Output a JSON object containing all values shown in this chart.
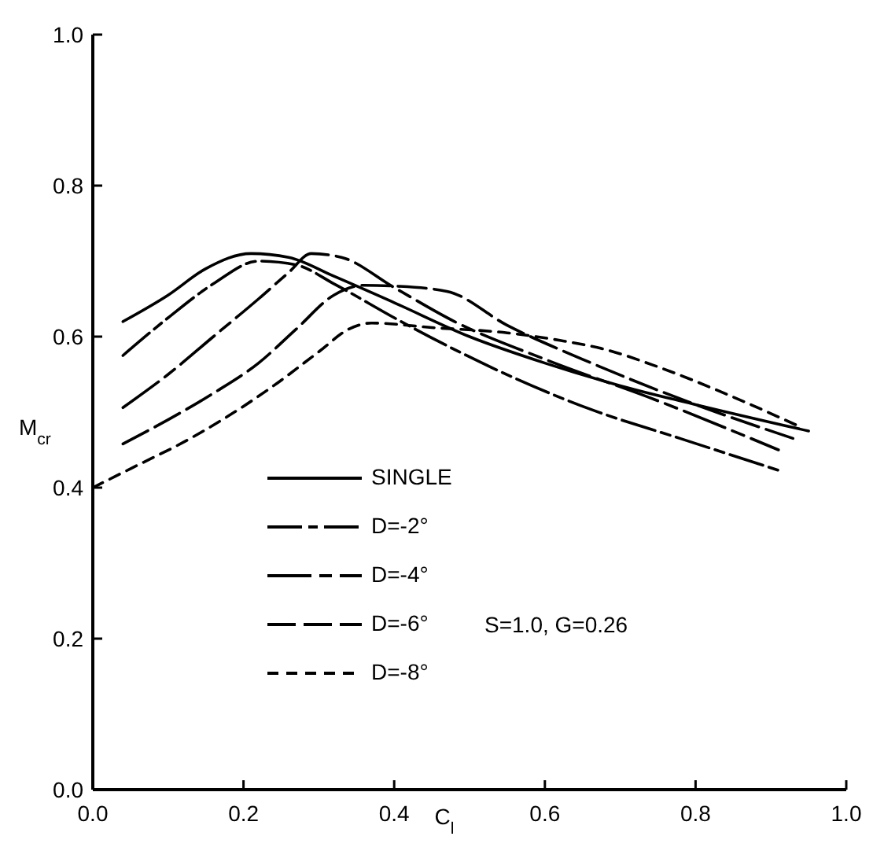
{
  "chart_data": {
    "type": "line",
    "xlabel": "C$_{l}$",
    "ylabel": "M$_{cr}$",
    "xlim": [
      0,
      1
    ],
    "ylim": [
      0,
      1
    ],
    "xticks": [
      {
        "value": 0,
        "label": "0.0"
      },
      0.2,
      0.4,
      0.6,
      0.8,
      {
        "value": 1,
        "label": "1.0"
      }
    ],
    "yticks": [
      {
        "value": 0,
        "label": "0.0"
      },
      0.2,
      0.4,
      0.6,
      0.8,
      {
        "value": 1,
        "label": "1.0"
      }
    ],
    "grid": false,
    "legend": "bottom left",
    "marker": "none",
    "annotations": [
      "S=1.0, G=0.26"
    ],
    "series": [
      {
        "name": "SINGLE",
        "color": "#000000",
        "line_style": "solid",
        "x": [
          0.04,
          0.1,
          0.15,
          0.21,
          0.26,
          0.32,
          0.4,
          0.5,
          0.6,
          0.7,
          0.8,
          0.95
        ],
        "values": [
          0.62,
          0.655,
          0.69,
          0.71,
          0.705,
          0.68,
          0.645,
          0.6,
          0.565,
          0.535,
          0.51,
          0.475
        ]
      },
      {
        "name": "D=-2°",
        "color": "#000000",
        "line_style": "dashed",
        "x": [
          0.04,
          0.1,
          0.16,
          0.22,
          0.27,
          0.32,
          0.4,
          0.48,
          0.56,
          0.66,
          0.78,
          0.91
        ],
        "values": [
          0.575,
          0.625,
          0.67,
          0.7,
          0.695,
          0.67,
          0.625,
          0.583,
          0.545,
          0.504,
          0.465,
          0.423
        ]
      },
      {
        "name": "D=-4°",
        "color": "#000000",
        "line_style": "dashed",
        "x": [
          0.04,
          0.1,
          0.16,
          0.22,
          0.26,
          0.29,
          0.33,
          0.4,
          0.48,
          0.6,
          0.75,
          0.91
        ],
        "values": [
          0.506,
          0.55,
          0.6,
          0.65,
          0.685,
          0.71,
          0.705,
          0.665,
          0.62,
          0.57,
          0.515,
          0.45
        ]
      },
      {
        "name": "D=-6°",
        "color": "#000000",
        "line_style": "dashed",
        "x": [
          0.04,
          0.1,
          0.16,
          0.22,
          0.27,
          0.32,
          0.36,
          0.4,
          0.47,
          0.55,
          0.65,
          0.8,
          0.93
        ],
        "values": [
          0.458,
          0.49,
          0.525,
          0.565,
          0.61,
          0.655,
          0.668,
          0.667,
          0.66,
          0.615,
          0.57,
          0.51,
          0.465
        ]
      },
      {
        "name": "D=-8°",
        "color": "#000000",
        "line_style": "dashed",
        "x": [
          0,
          0.06,
          0.12,
          0.18,
          0.24,
          0.3,
          0.34,
          0.37,
          0.45,
          0.55,
          0.62,
          0.68,
          0.75,
          0.85,
          0.94
        ],
        "values": [
          0.4,
          0.43,
          0.46,
          0.495,
          0.535,
          0.58,
          0.61,
          0.618,
          0.612,
          0.605,
          0.595,
          0.583,
          0.56,
          0.52,
          0.48
        ]
      }
    ]
  }
}
